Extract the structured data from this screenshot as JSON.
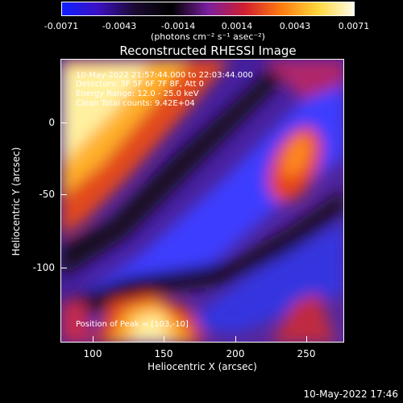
{
  "colorbar": {
    "ticks": [
      "-0.0071",
      "-0.0043",
      "-0.0014",
      "0.0014",
      "0.0043",
      "0.0071"
    ],
    "units": "(photons cm⁻² s⁻¹ asec⁻²)",
    "colors": [
      "#1020ff",
      "#3c10c0",
      "#1a0a30",
      "#000000",
      "#7a1fa0",
      "#d01e30",
      "#ff7a10",
      "#ffd63a",
      "#fffbe6"
    ]
  },
  "title": "Reconstructed RHESSI Image",
  "annotations": {
    "time": "10-May-2022 21:57:44.000 to 22:03:44.000",
    "detectors": "Detectors: 3F 5F 6F 7F 8F, Att 0",
    "energy": "Energy Range: 12.0 - 25.0 keV",
    "clean": "Clean   Total counts: 9.42E+04",
    "position": "Position of Peak = [103,-10]"
  },
  "axes": {
    "x_ticks": [
      "100",
      "150",
      "200",
      "250"
    ],
    "y_ticks": [
      "0",
      "-50",
      "-100"
    ],
    "xlabel": "Heliocentric X (arcsec)",
    "ylabel": "Heliocentric Y (arcsec)"
  },
  "stamp": "10-May-2022 17:46"
}
